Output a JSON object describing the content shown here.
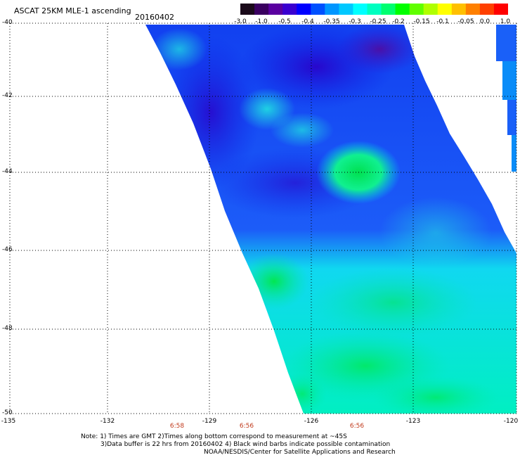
{
  "header": {
    "title": "ASCAT 25KM MLE-1 ascending",
    "date": "20160402"
  },
  "colorbar": {
    "colors": [
      "#1a0a1a",
      "#3a0060",
      "#5a00a0",
      "#3a00d0",
      "#0000ff",
      "#0050ff",
      "#0096ff",
      "#00c8ff",
      "#00ffff",
      "#00ffc0",
      "#00ff70",
      "#00ff00",
      "#60ff00",
      "#b0ff00",
      "#ffff00",
      "#ffc000",
      "#ff8000",
      "#ff4000",
      "#ff0000"
    ],
    "labels": [
      "-3.0",
      "-1.0",
      "-0.5",
      "-0.4",
      "-0.35",
      "-0.3",
      "-0.25",
      "-0.2",
      "-0.15",
      "-0.1",
      "-0.05",
      "0.0",
      "1.0"
    ]
  },
  "axes": {
    "lat_labels": [
      "-40",
      "-42",
      "-44",
      "-46",
      "-48",
      "-50"
    ],
    "lon_labels": [
      "-135",
      "-132",
      "-129",
      "-126",
      "-123",
      "-120"
    ]
  },
  "times": [
    "6:58",
    "6:56",
    "6:56"
  ],
  "notes": [
    "Note: 1) Times are GMT 2)Times along bottom correspond to measurement at ~45S",
    "3)Data buffer is 22 hrs from 20160402 4) Black wind barbs indicate possible contamination",
    "NOAA/NESDIS/Center for Satellite Applications and Research"
  ]
}
